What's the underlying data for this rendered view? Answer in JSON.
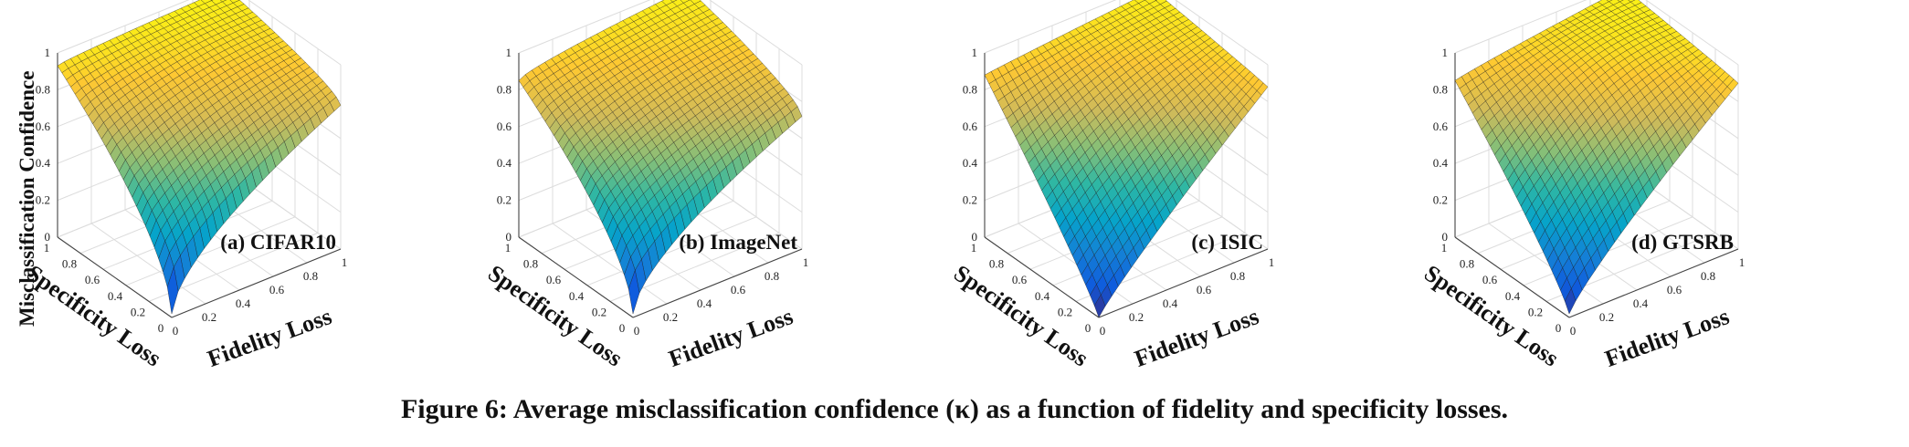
{
  "figure": {
    "caption": "Figure 6: Average misclassification confidence (κ) as a function of fidelity and specificity losses.",
    "colormap": [
      "#352a87",
      "#0f5cdd",
      "#1481d6",
      "#06a4ca",
      "#2eb7a4",
      "#87bf77",
      "#d1bb59",
      "#fec832",
      "#f9fb0e"
    ]
  },
  "chart_data": [
    {
      "type": "surface",
      "title": "(a) CIFAR10",
      "xlabel": "Fidelity Loss",
      "ylabel": "Specificity Loss",
      "zlabel": "Misclassification Confidence",
      "xlim": [
        0,
        1
      ],
      "ylim": [
        0,
        1
      ],
      "zlim": [
        0,
        1
      ],
      "x_ticks": [
        "0",
        "0.2",
        "0.4",
        "0.6",
        "0.8",
        "1"
      ],
      "y_ticks": [
        "0",
        "0.2",
        "0.4",
        "0.6",
        "0.8",
        "1"
      ],
      "z_ticks": [
        "0",
        "0.2",
        "0.4",
        "0.6",
        "0.8",
        "1"
      ],
      "grid": true,
      "corner_values": {
        "fidelity0_specificity0": 0.02,
        "fidelity1_specificity0": 0.78,
        "fidelity0_specificity1": 0.93,
        "fidelity1_specificity1": 0.98
      },
      "surface_shape": {
        "gamma": 0.6,
        "ridge": 0.03
      }
    },
    {
      "type": "surface",
      "title": "(b) ImageNet",
      "xlabel": "Fidelity Loss",
      "ylabel": "Specificity Loss",
      "zlabel": "",
      "xlim": [
        0,
        1
      ],
      "ylim": [
        0,
        1
      ],
      "zlim": [
        0,
        1
      ],
      "x_ticks": [
        "0",
        "0.2",
        "0.4",
        "0.6",
        "0.8",
        "1"
      ],
      "y_ticks": [
        "0",
        "0.2",
        "0.4",
        "0.6",
        "0.8",
        "1"
      ],
      "z_ticks": [
        "0",
        "0.2",
        "0.4",
        "0.6",
        "0.8",
        "1"
      ],
      "grid": true,
      "corner_values": {
        "fidelity0_specificity0": 0.02,
        "fidelity1_specificity0": 0.72,
        "fidelity0_specificity1": 0.85,
        "fidelity1_specificity1": 0.98
      },
      "surface_shape": {
        "gamma": 0.6,
        "ridge": 0.02
      }
    },
    {
      "type": "surface",
      "title": "(c) ISIC",
      "xlabel": "Fidelity Loss",
      "ylabel": "Specificity Loss",
      "zlabel": "",
      "xlim": [
        0,
        1
      ],
      "ylim": [
        0,
        1
      ],
      "zlim": [
        0,
        1
      ],
      "x_ticks": [
        "0",
        "0.2",
        "0.4",
        "0.6",
        "0.8",
        "1"
      ],
      "y_ticks": [
        "0",
        "0.2",
        "0.4",
        "0.6",
        "0.8",
        "1"
      ],
      "z_ticks": [
        "0",
        "0.2",
        "0.4",
        "0.6",
        "0.8",
        "1"
      ],
      "grid": true,
      "corner_values": {
        "fidelity0_specificity0": 0.0,
        "fidelity1_specificity0": 0.88,
        "fidelity0_specificity1": 0.88,
        "fidelity1_specificity1": 0.97
      },
      "surface_shape": {
        "gamma": 0.9,
        "ridge": 0.06
      }
    },
    {
      "type": "surface",
      "title": "(d) GTSRB",
      "xlabel": "Fidelity Loss",
      "ylabel": "Specificity Loss",
      "zlabel": "",
      "xlim": [
        0,
        1
      ],
      "ylim": [
        0,
        1
      ],
      "zlim": [
        0,
        1
      ],
      "x_ticks": [
        "0",
        "0.2",
        "0.4",
        "0.6",
        "0.8",
        "1"
      ],
      "y_ticks": [
        "0",
        "0.2",
        "0.4",
        "0.6",
        "0.8",
        "1"
      ],
      "z_ticks": [
        "0",
        "0.2",
        "0.4",
        "0.6",
        "0.8",
        "1"
      ],
      "grid": true,
      "corner_values": {
        "fidelity0_specificity0": 0.02,
        "fidelity1_specificity0": 0.9,
        "fidelity0_specificity1": 0.85,
        "fidelity1_specificity1": 0.98
      },
      "surface_shape": {
        "gamma": 0.85,
        "ridge": 0.1
      }
    }
  ]
}
